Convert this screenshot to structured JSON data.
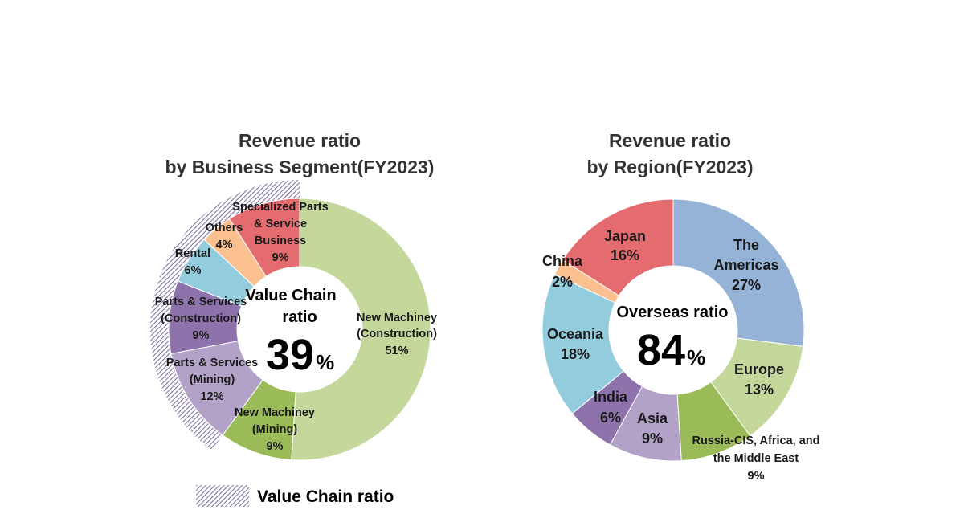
{
  "chart_data": [
    {
      "type": "pie",
      "title_lines": [
        "Revenue ratio",
        "by Business Segment(FY2023)"
      ],
      "center": {
        "label_lines": [
          "Value Chain",
          "ratio"
        ],
        "value": "39",
        "unit": "%"
      },
      "slices": [
        {
          "label_lines": [
            "New Machiney",
            "(Construction)"
          ],
          "value": 51,
          "value_text": "51%",
          "color": "#c4d89c"
        },
        {
          "label_lines": [
            "New Machiney",
            "(Mining)"
          ],
          "value": 9,
          "value_text": "9%",
          "color": "#9bbb59"
        },
        {
          "label_lines": [
            "Parts & Services",
            "(Mining)"
          ],
          "value": 12,
          "value_text": "12%",
          "color": "#b3a2c7"
        },
        {
          "label_lines": [
            "Parts & Services",
            "(Construction)"
          ],
          "value": 9,
          "value_text": "9%",
          "color": "#8e72ac"
        },
        {
          "label_lines": [
            "Rental"
          ],
          "value": 6,
          "value_text": "6%",
          "color": "#93cddd"
        },
        {
          "label_lines": [
            "Others"
          ],
          "value": 4,
          "value_text": "4%",
          "color": "#fac090"
        },
        {
          "label_lines": [
            "Specialized Parts",
            "& Service",
            "Business"
          ],
          "value": 9,
          "value_text": "9%",
          "color": "#e46b6e"
        }
      ],
      "legend": {
        "label": "Value Chain ratio",
        "pattern_color": "#7a6a9e"
      }
    },
    {
      "type": "pie",
      "title_lines": [
        "Revenue ratio",
        "by Region(FY2023)"
      ],
      "center": {
        "label_lines": [
          "Overseas ratio"
        ],
        "value": "84",
        "unit": "%"
      },
      "slices": [
        {
          "label_lines": [
            "The",
            "Americas"
          ],
          "value": 27,
          "value_text": "27%",
          "color": "#95b3d7"
        },
        {
          "label_lines": [
            "Europe"
          ],
          "value": 13,
          "value_text": "13%",
          "color": "#c4d89c"
        },
        {
          "label_lines": [
            "Russia-CIS, Africa, and",
            "the Middle East"
          ],
          "value": 9,
          "value_text": "9%",
          "color": "#9bbb59"
        },
        {
          "label_lines": [
            "Asia"
          ],
          "value": 9,
          "value_text": "9%",
          "color": "#b3a2c7"
        },
        {
          "label_lines": [
            "India"
          ],
          "value": 6,
          "value_text": "6%",
          "color": "#8e72ac"
        },
        {
          "label_lines": [
            "Oceania"
          ],
          "value": 18,
          "value_text": "18%",
          "color": "#93cddd"
        },
        {
          "label_lines": [
            "China"
          ],
          "value": 2,
          "value_text": "2%",
          "color": "#fac090"
        },
        {
          "label_lines": [
            "Japan"
          ],
          "value": 16,
          "value_text": "16%",
          "color": "#e46b6e"
        }
      ]
    }
  ]
}
